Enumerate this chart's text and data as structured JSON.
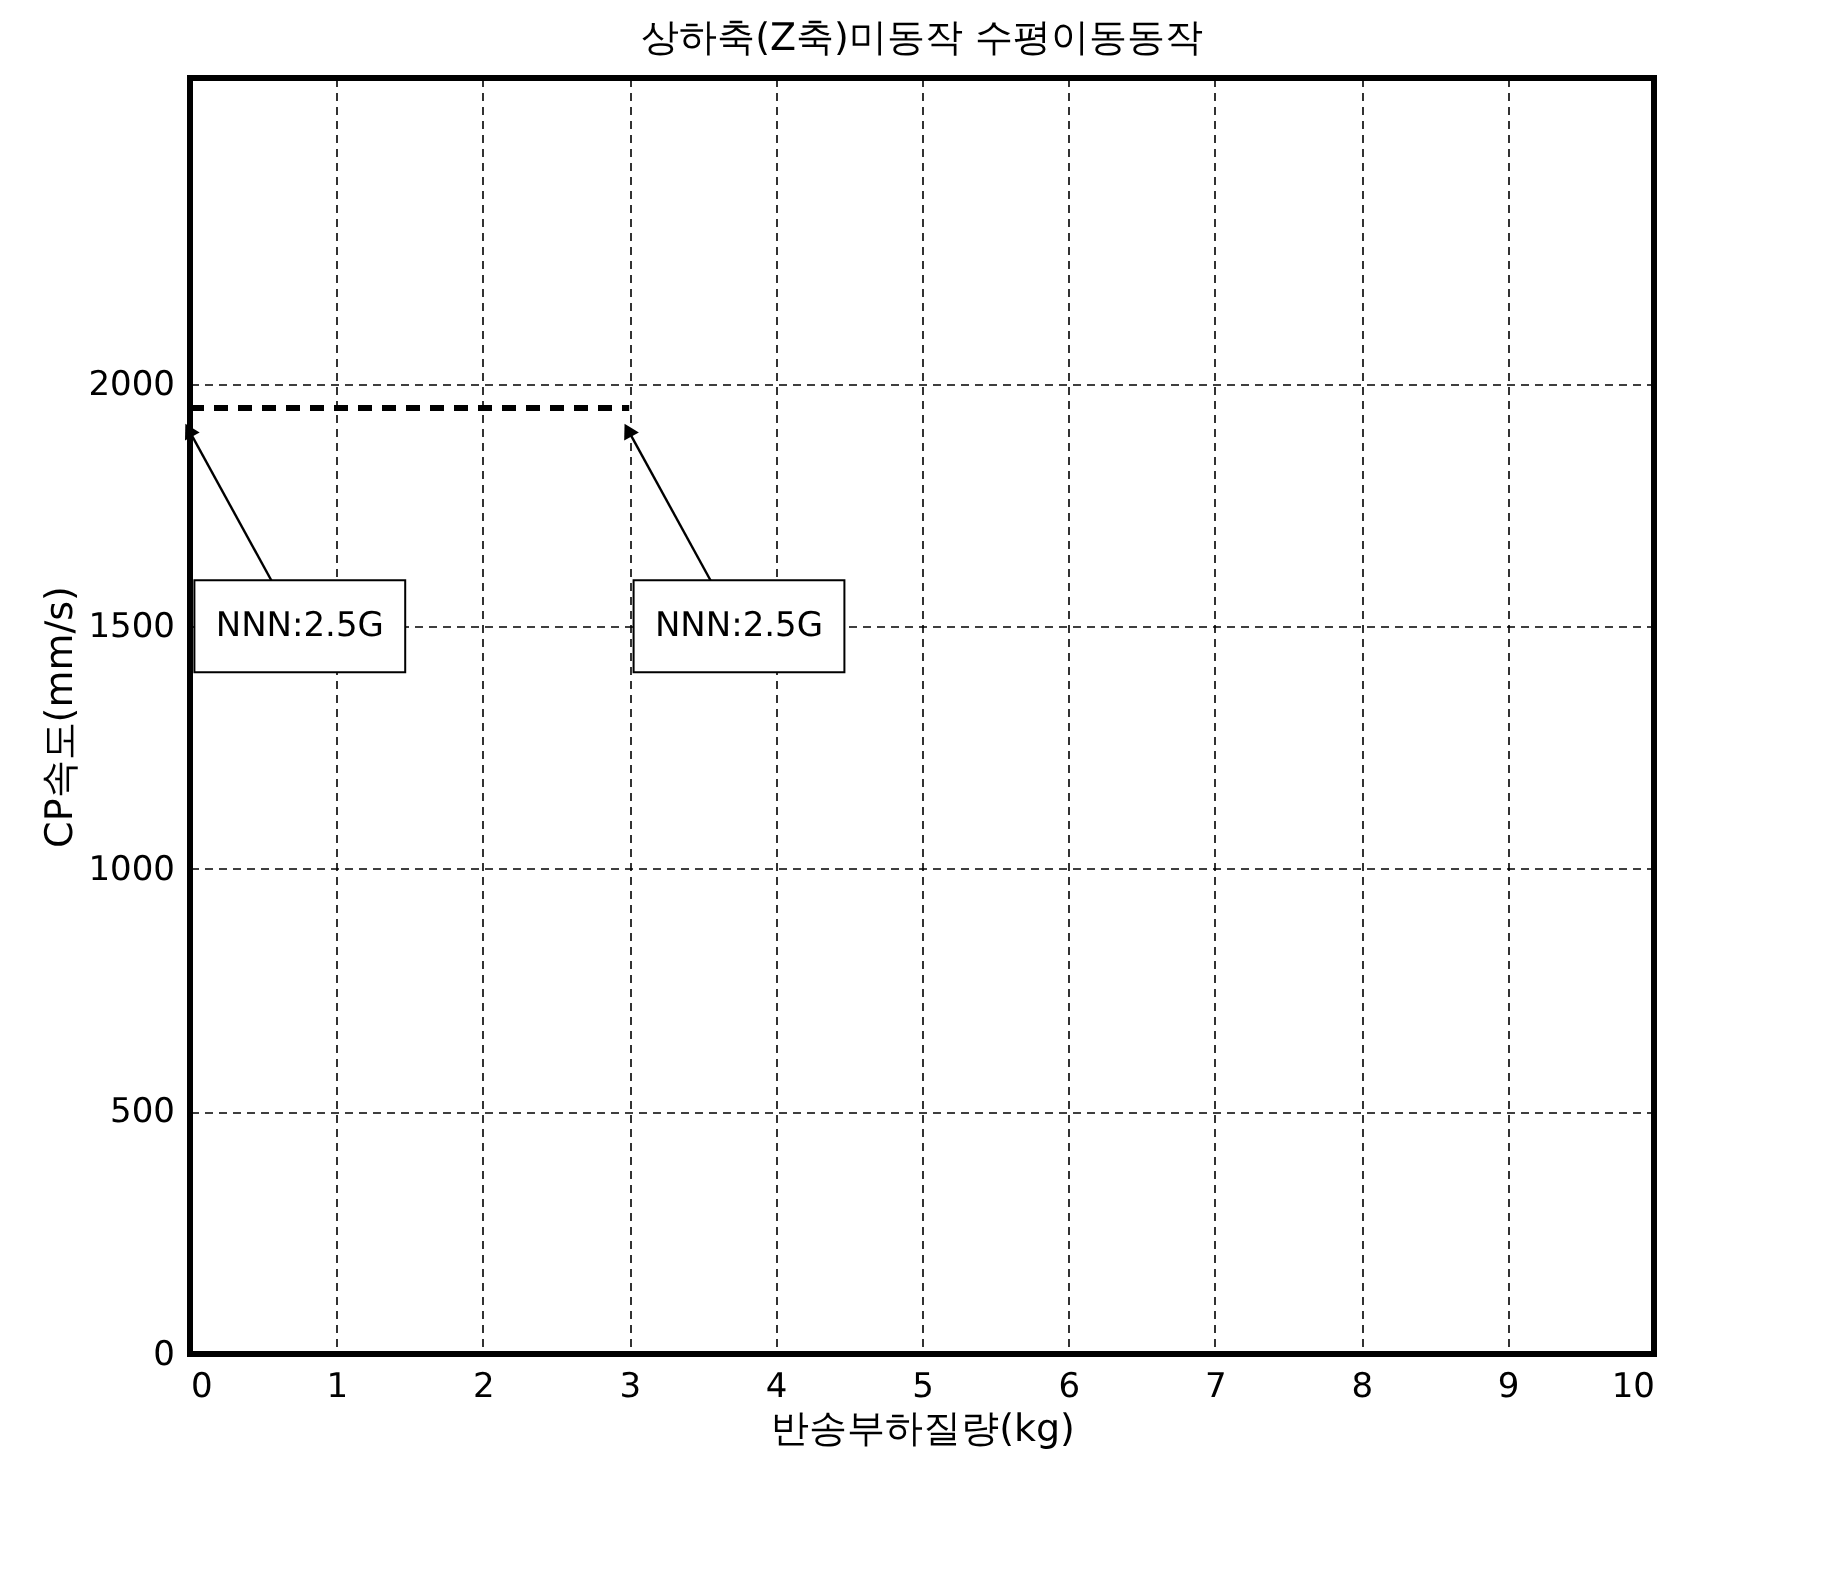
{
  "chart_data": {
    "type": "line",
    "title": "상하축(Z축)미동작 수평이동동작",
    "xlabel": "반송부하질량(kg)",
    "ylabel": "CP속도(mm/s)",
    "xlim": [
      0,
      10
    ],
    "ylim": [
      0,
      2630
    ],
    "xticks": [
      0,
      1,
      2,
      3,
      4,
      5,
      6,
      7,
      8,
      9,
      10
    ],
    "yticks": [
      0,
      500,
      1000,
      1500,
      2000
    ],
    "grid": true,
    "marker": "none",
    "series": [
      {
        "color": "#000000",
        "line_style": "dashed",
        "x": [
          0,
          3
        ],
        "values": [
          1950,
          1950
        ]
      }
    ],
    "annotations": [
      {
        "text": "NNN:2.5G",
        "x": 0,
        "y": 1900
      },
      {
        "text": "NNN:2.5G",
        "x": 3,
        "y": 1900
      }
    ]
  }
}
